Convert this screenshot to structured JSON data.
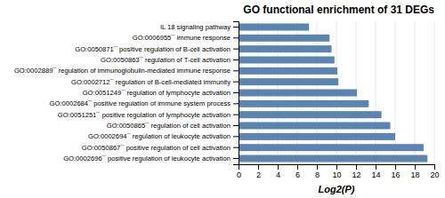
{
  "chart_data": {
    "type": "bar",
    "orientation": "horizontal",
    "title": "GO functional enrichment of 31 DEGs",
    "xlabel": "Log2(P)",
    "categories": [
      "IL 18 signaling pathway",
      "GO:0006955¯ immune response",
      "GO:0050871¯ positive regulation of B-cell activation",
      "GO:0050863¯ regulation of T-cell activation",
      "GO:0002889¯ regulation of immunoglobulin-mediated immune response",
      "GO:0002712¯ regulation of B-cell-mediated immunity",
      "GO:0051249¯ regulation of lymphocyte activation",
      "GO:0002684¯ positive regulation of immune system process",
      "GO:0051251¯ positive regulation of lymphocyte activation",
      "GO:0050865¯ regulation of cell activation",
      "GO:0002694¯ regulation of leukocyte activation",
      "GO:0050867¯ positive regulation of cell activation",
      "GO:0002696¯ positive regulation of leukocyte activation"
    ],
    "values": [
      7.2,
      9.3,
      9.5,
      9.8,
      10.1,
      10.2,
      12.1,
      13.3,
      14.6,
      15.5,
      16.0,
      18.9,
      19.3
    ],
    "color": "#5b84b1",
    "xlim": [
      0,
      20
    ],
    "xticks": [
      0,
      2,
      4,
      6,
      8,
      10,
      12,
      14,
      16,
      18,
      20
    ],
    "grid": true
  }
}
